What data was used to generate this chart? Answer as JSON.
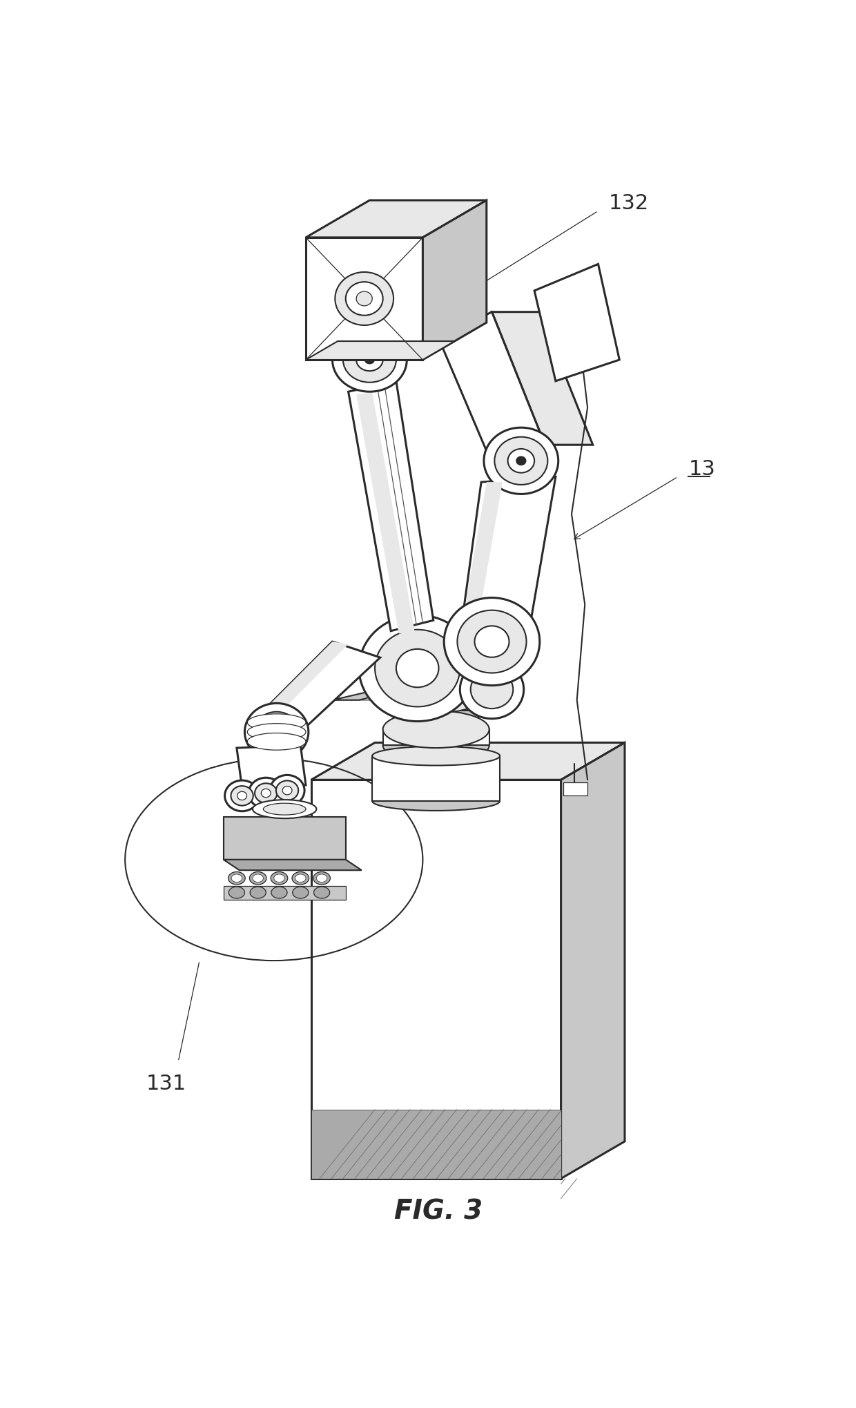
{
  "background_color": "#ffffff",
  "line_color": "#2a2a2a",
  "label_132": "132",
  "label_13": "13",
  "label_131": "131",
  "caption": "FIG. 3",
  "figsize": [
    12.4,
    20.4
  ],
  "dpi": 100,
  "lw_thick": 2.2,
  "lw_medium": 1.5,
  "lw_thin": 0.9,
  "gray_light": "#e8e8e8",
  "gray_mid": "#c8c8c8",
  "gray_dark": "#aaaaaa",
  "hatch_color": "#999999"
}
